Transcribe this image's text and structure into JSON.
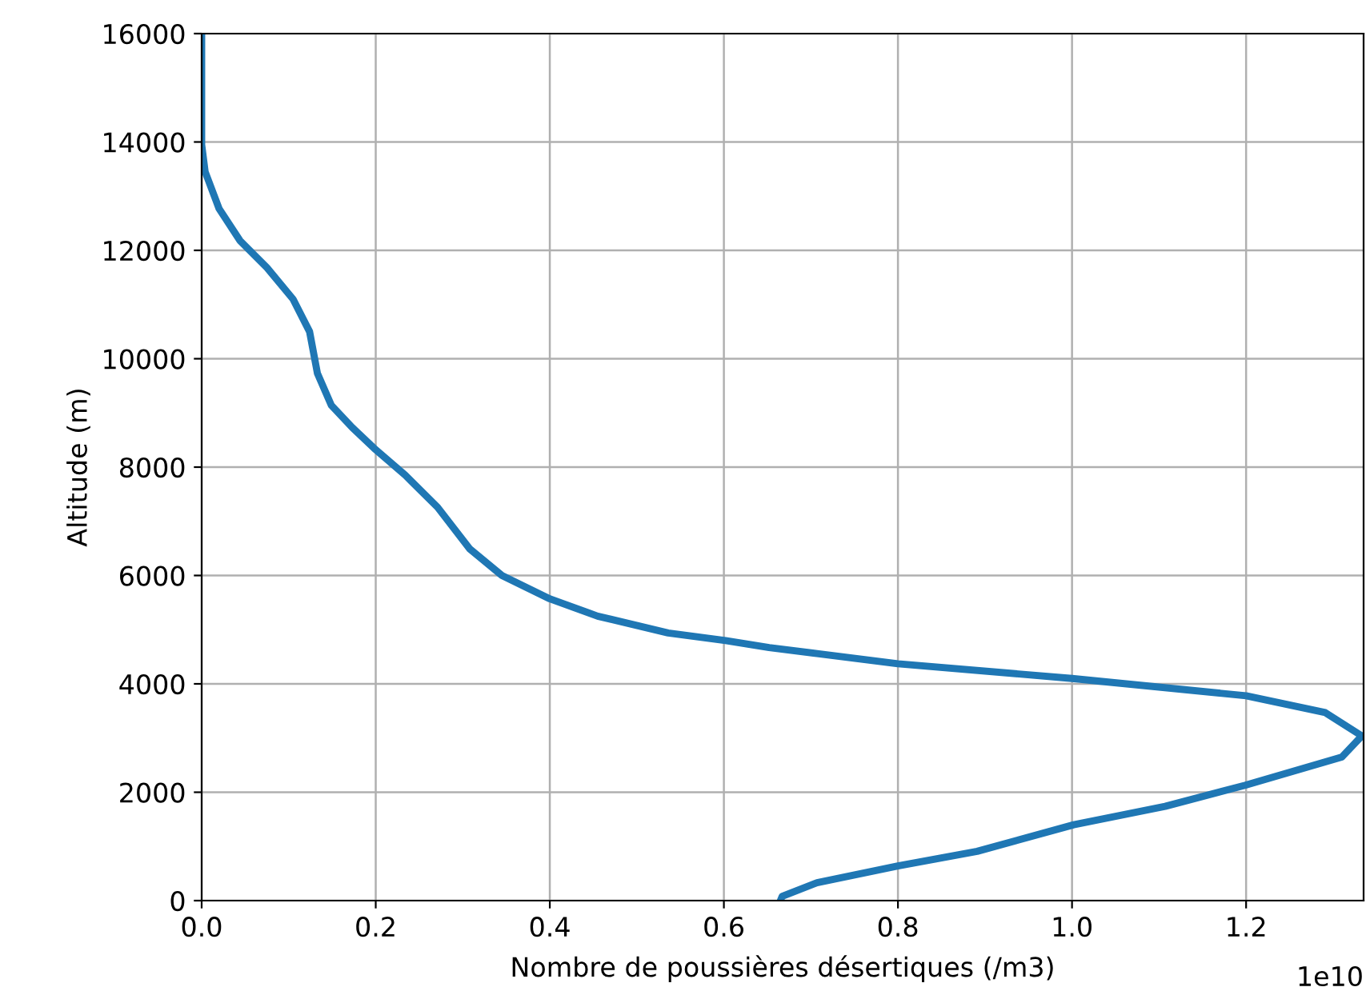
{
  "chart_data": {
    "type": "line",
    "xlabel": "Nombre de poussières désertiques (/m3)",
    "ylabel": "Altitude (m)",
    "xlim": [
      0,
      1.335
    ],
    "xticks": [
      {
        "value": 0,
        "label": "0.0"
      },
      0.2,
      0.4,
      0.6,
      0.8,
      {
        "value": 1.0,
        "label": "1.0"
      },
      1.2
    ],
    "ylim": [
      0,
      16000
    ],
    "yticks": [
      0,
      2000,
      4000,
      6000,
      8000,
      10000,
      12000,
      14000,
      16000
    ],
    "grid": true,
    "annotations": [
      "1e10"
    ],
    "series": [
      {
        "color": "#1f77b4",
        "x": [
          0.665,
          0.667,
          0.707,
          0.8,
          0.891,
          1.002,
          1.107,
          1.199,
          1.31,
          1.333,
          1.291,
          1.2,
          1.0,
          0.8,
          0.707,
          0.652,
          0.602,
          0.536,
          0.455,
          0.4,
          0.345,
          0.308,
          0.271,
          0.234,
          0.198,
          0.173,
          0.149,
          0.133,
          0.124,
          0.105,
          0.075,
          0.044,
          0.02,
          0.004,
          0.0,
          0.0
        ],
        "values": [
          0,
          80,
          330,
          640,
          910,
          1400,
          1740,
          2130,
          2650,
          3040,
          3470,
          3780,
          4100,
          4370,
          4560,
          4670,
          4800,
          4940,
          5250,
          5570,
          6000,
          6490,
          7260,
          7850,
          8350,
          8730,
          9140,
          9730,
          10500,
          11100,
          11680,
          12180,
          12770,
          13450,
          13950,
          16000
        ]
      }
    ]
  }
}
